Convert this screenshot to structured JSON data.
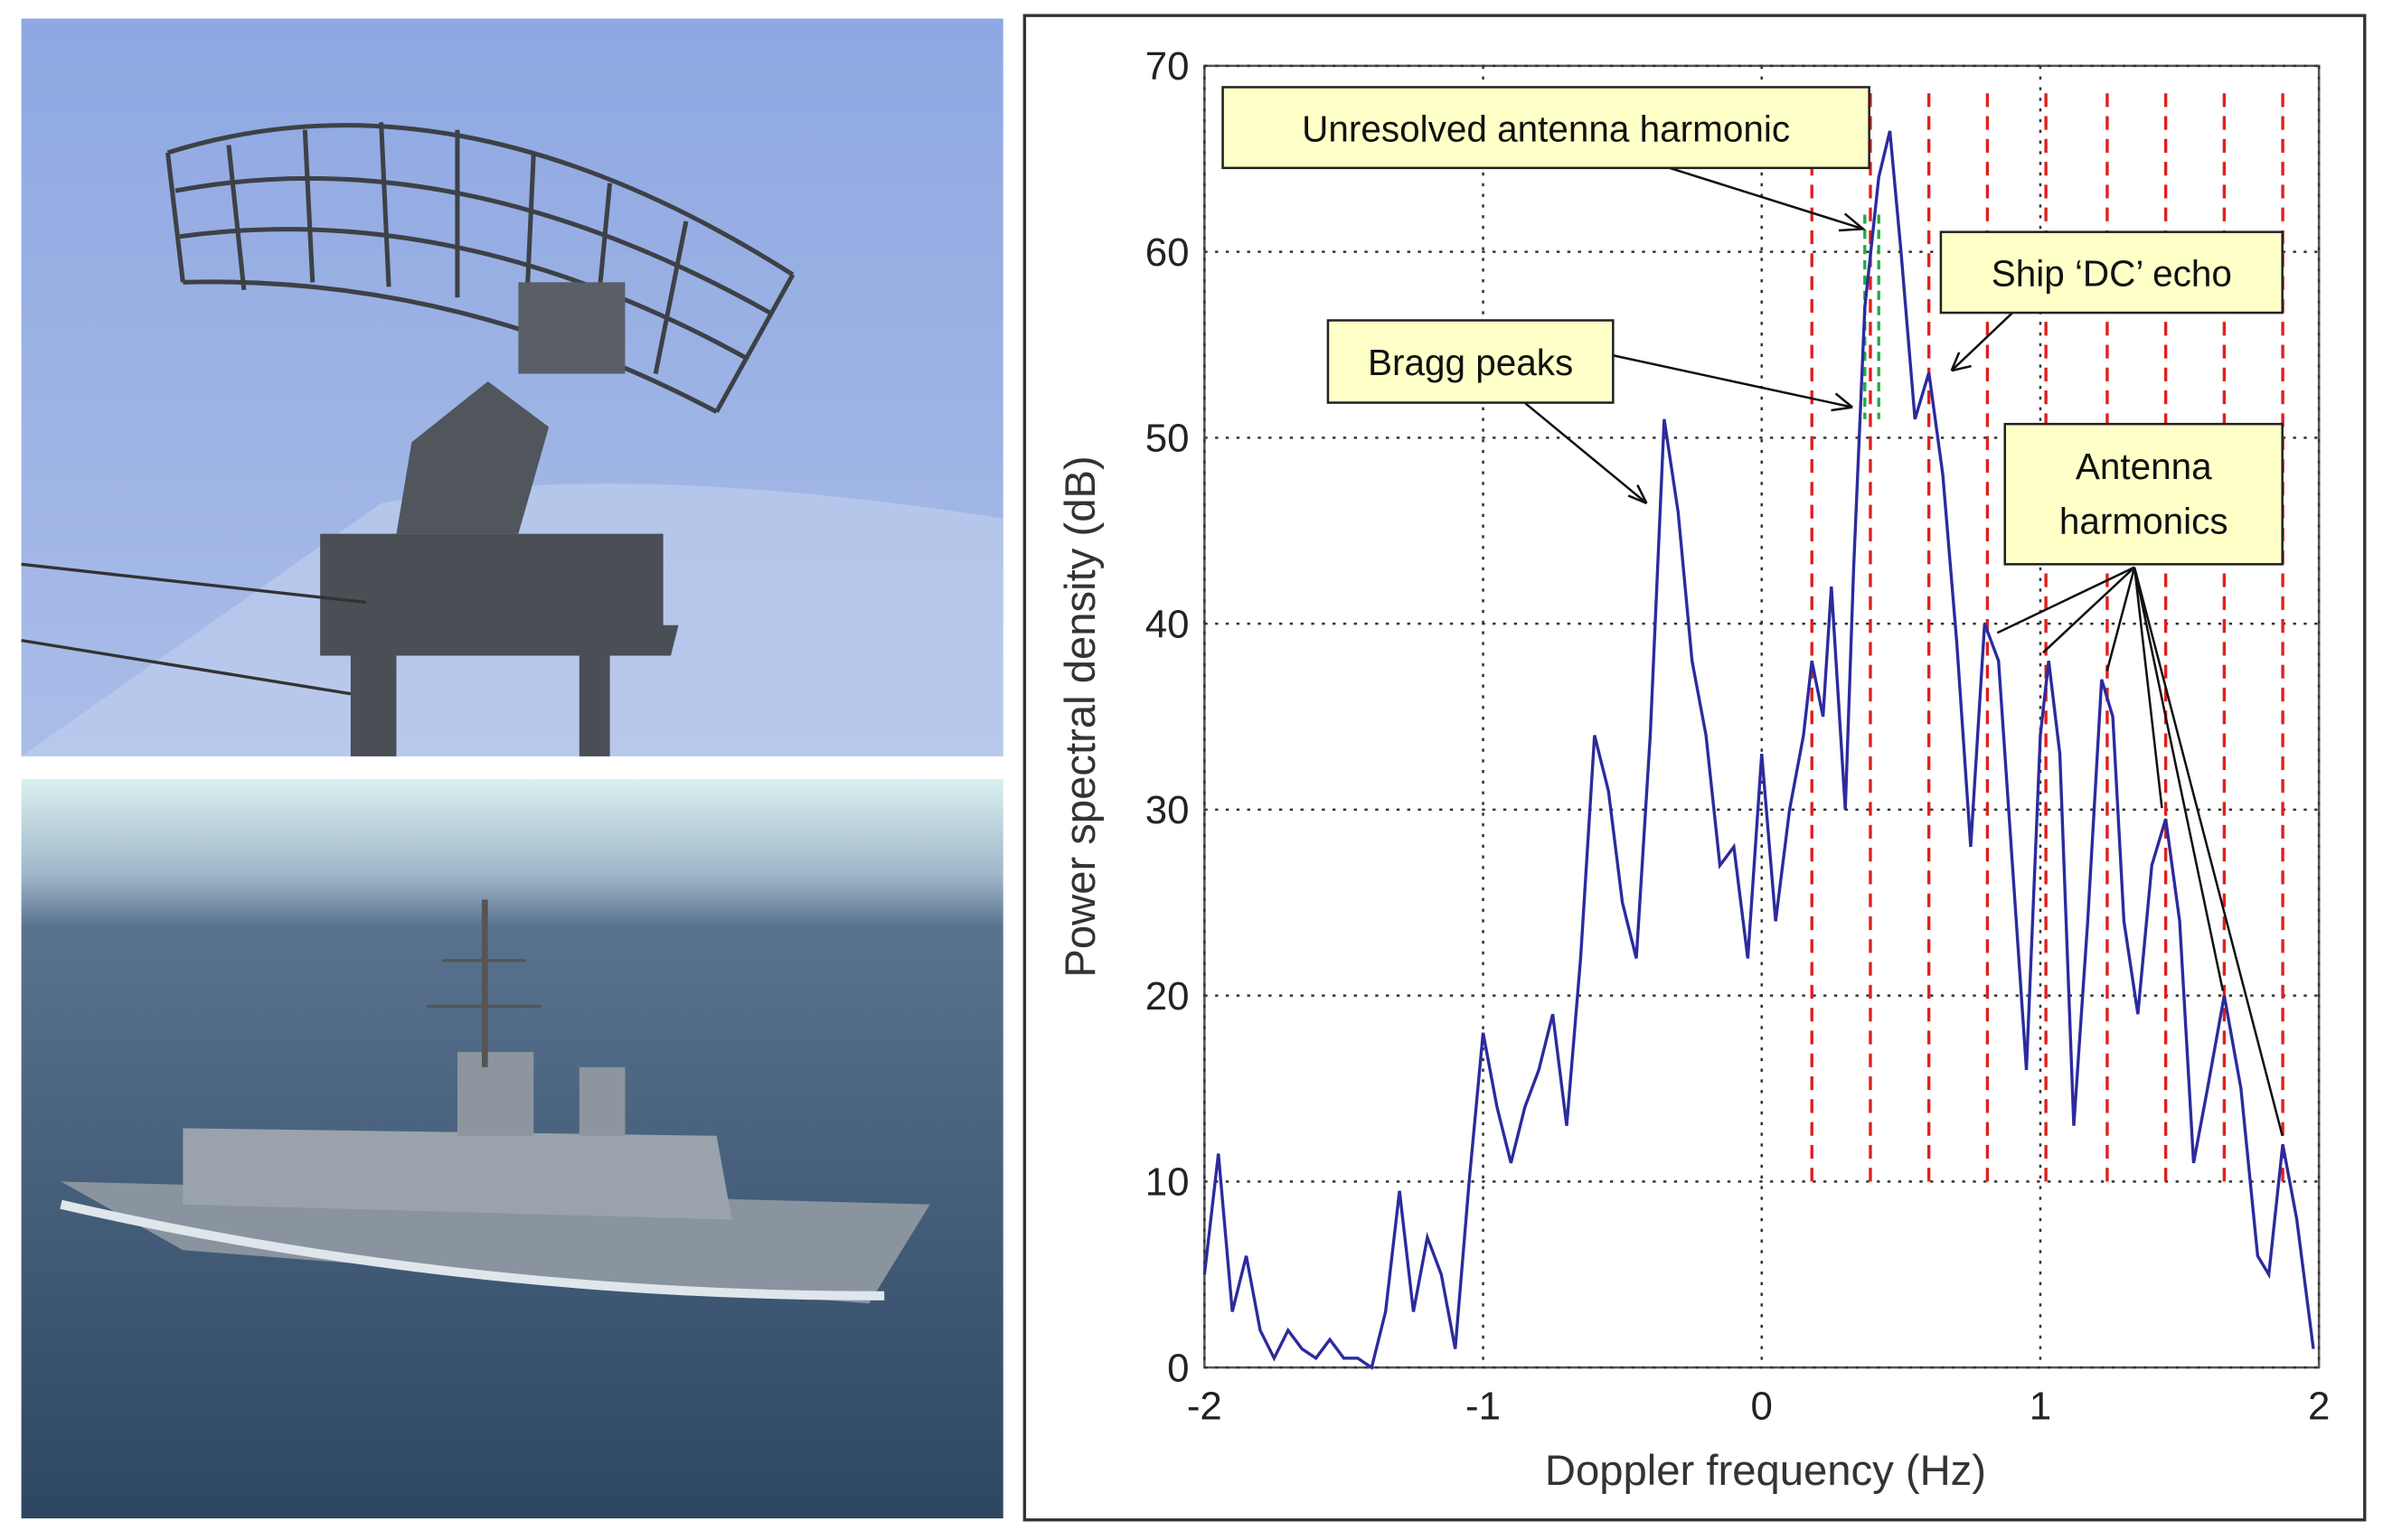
{
  "chart_data": {
    "type": "line",
    "xlabel": "Doppler frequency (Hz)",
    "ylabel": "Power spectral density (dB)",
    "x": [
      -2,
      -1.95,
      -1.9,
      -1.85,
      -1.8,
      -1.75,
      -1.7,
      -1.65,
      -1.6,
      -1.55,
      -1.5,
      -1.45,
      -1.4,
      -1.35,
      -1.3,
      -1.25,
      -1.2,
      -1.15,
      -1.1,
      -1.05,
      -1.0,
      -0.95,
      -0.9,
      -0.85,
      -0.8,
      -0.75,
      -0.7,
      -0.65,
      -0.6,
      -0.55,
      -0.5,
      -0.45,
      -0.4,
      -0.35,
      -0.3,
      -0.25,
      -0.2,
      -0.15,
      -0.1,
      -0.05,
      0,
      0.05,
      0.1,
      0.15,
      0.18,
      0.22,
      0.25,
      0.3,
      0.33,
      0.37,
      0.42,
      0.46,
      0.5,
      0.55,
      0.6,
      0.65,
      0.7,
      0.75,
      0.8,
      0.85,
      0.9,
      0.95,
      1.0,
      1.03,
      1.07,
      1.12,
      1.17,
      1.22,
      1.26,
      1.3,
      1.35,
      1.4,
      1.45,
      1.5,
      1.55,
      1.6,
      1.66,
      1.72,
      1.78,
      1.82,
      1.87,
      1.92,
      1.98
    ],
    "series": [
      {
        "name": "PSD",
        "color": "#2b2b9e",
        "values": [
          5,
          11.5,
          3,
          6,
          2,
          0.5,
          2,
          1,
          0.5,
          1.5,
          0.5,
          0.5,
          0,
          3,
          9.5,
          3,
          7,
          5,
          1,
          10,
          18,
          14,
          11,
          14,
          16,
          19,
          13,
          22,
          34,
          31,
          25,
          22,
          34,
          51,
          46,
          38,
          34,
          27,
          28,
          22,
          33,
          24,
          30,
          34,
          38,
          35,
          42,
          30,
          43,
          57,
          64,
          66.5,
          60,
          51,
          53.5,
          48,
          39,
          28,
          40,
          38,
          27,
          16,
          34,
          38,
          33,
          13,
          24,
          37,
          35,
          24,
          19,
          27,
          29.5,
          24,
          11,
          15,
          20,
          15,
          6,
          5,
          12,
          8,
          1
        ]
      }
    ],
    "harmonic_lines": {
      "color": "#e0201c",
      "x": [
        0.18,
        0.39,
        0.6,
        0.81,
        1.02,
        1.24,
        1.45,
        1.66,
        1.87
      ]
    },
    "resolved_lines": {
      "color": "#22aa44",
      "x": [
        0.37,
        0.42
      ]
    },
    "xlim": [
      -2,
      2
    ],
    "xticks": [
      -2,
      -1,
      0,
      1,
      2
    ],
    "ylim": [
      0,
      70
    ],
    "yticks": [
      0,
      10,
      20,
      30,
      40,
      50,
      60,
      70
    ],
    "grid": true,
    "annotations": [
      "Unresolved antenna harmonic",
      "Ship ‘DC’ echo",
      "Bragg peaks",
      [
        "Antenna",
        "harmonics"
      ]
    ]
  }
}
